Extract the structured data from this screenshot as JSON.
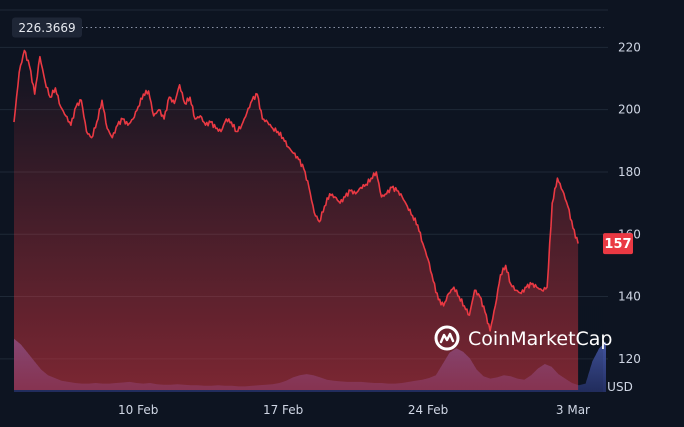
{
  "chart_data": {
    "type": "area",
    "y_unit": "USD",
    "ylim": [
      110,
      232
    ],
    "y_ticks": [
      120,
      140,
      160,
      180,
      200,
      220
    ],
    "x_ticks": [
      {
        "date": "2025-02-10",
        "label": "10 Feb"
      },
      {
        "date": "2025-02-17",
        "label": "17 Feb"
      },
      {
        "date": "2025-02-24",
        "label": "24 Feb"
      },
      {
        "date": "2025-03-03",
        "label": "3 Mar"
      }
    ],
    "x_range": [
      "2025-02-04 00:00",
      "2025-03-04 12:00"
    ],
    "max_line_value": 226.3669,
    "max_label": "226.3669",
    "current_price": 157,
    "current_price_label": "157",
    "grid": true,
    "colors": {
      "line": "#ea3943",
      "area_top": "#ea3943",
      "volume": "#3a4a8c",
      "price_badge": "#ea3943",
      "background": "#0d1421"
    },
    "series": [
      {
        "values": [
          [
            "2025-02-04 00:00",
            196
          ],
          [
            "2025-02-04 06:00",
            212
          ],
          [
            "2025-02-04 12:00",
            219
          ],
          [
            "2025-02-04 18:00",
            214
          ],
          [
            "2025-02-05 00:00",
            205
          ],
          [
            "2025-02-05 06:00",
            217
          ],
          [
            "2025-02-05 12:00",
            209
          ],
          [
            "2025-02-05 18:00",
            204
          ],
          [
            "2025-02-06 00:00",
            207
          ],
          [
            "2025-02-06 06:00",
            201
          ],
          [
            "2025-02-06 12:00",
            198
          ],
          [
            "2025-02-06 18:00",
            195
          ],
          [
            "2025-02-07 00:00",
            201
          ],
          [
            "2025-02-07 06:00",
            203
          ],
          [
            "2025-02-07 12:00",
            193
          ],
          [
            "2025-02-07 18:00",
            191
          ],
          [
            "2025-02-08 00:00",
            196
          ],
          [
            "2025-02-08 06:00",
            203
          ],
          [
            "2025-02-08 12:00",
            194
          ],
          [
            "2025-02-08 18:00",
            191
          ],
          [
            "2025-02-09 00:00",
            195
          ],
          [
            "2025-02-09 06:00",
            197
          ],
          [
            "2025-02-09 12:00",
            195
          ],
          [
            "2025-02-09 18:00",
            197
          ],
          [
            "2025-02-10 00:00",
            201
          ],
          [
            "2025-02-10 06:00",
            205
          ],
          [
            "2025-02-10 12:00",
            206
          ],
          [
            "2025-02-10 18:00",
            198
          ],
          [
            "2025-02-11 00:00",
            200
          ],
          [
            "2025-02-11 06:00",
            197
          ],
          [
            "2025-02-11 12:00",
            204
          ],
          [
            "2025-02-11 18:00",
            202
          ],
          [
            "2025-02-12 00:00",
            208
          ],
          [
            "2025-02-12 06:00",
            202
          ],
          [
            "2025-02-12 12:00",
            204
          ],
          [
            "2025-02-12 18:00",
            197
          ],
          [
            "2025-02-13 00:00",
            198
          ],
          [
            "2025-02-13 06:00",
            195
          ],
          [
            "2025-02-13 12:00",
            196
          ],
          [
            "2025-02-13 18:00",
            194
          ],
          [
            "2025-02-14 00:00",
            193
          ],
          [
            "2025-02-14 06:00",
            197
          ],
          [
            "2025-02-14 12:00",
            196
          ],
          [
            "2025-02-14 18:00",
            193
          ],
          [
            "2025-02-15 00:00",
            195
          ],
          [
            "2025-02-15 06:00",
            199
          ],
          [
            "2025-02-15 12:00",
            203
          ],
          [
            "2025-02-15 18:00",
            205
          ],
          [
            "2025-02-16 00:00",
            197
          ],
          [
            "2025-02-16 06:00",
            196
          ],
          [
            "2025-02-16 12:00",
            194
          ],
          [
            "2025-02-16 18:00",
            193
          ],
          [
            "2025-02-17 00:00",
            191
          ],
          [
            "2025-02-17 06:00",
            188
          ],
          [
            "2025-02-17 12:00",
            186
          ],
          [
            "2025-02-17 18:00",
            184
          ],
          [
            "2025-02-18 00:00",
            181
          ],
          [
            "2025-02-18 06:00",
            175
          ],
          [
            "2025-02-18 12:00",
            167
          ],
          [
            "2025-02-18 18:00",
            164
          ],
          [
            "2025-02-19 00:00",
            169
          ],
          [
            "2025-02-19 06:00",
            173
          ],
          [
            "2025-02-19 12:00",
            172
          ],
          [
            "2025-02-19 18:00",
            170
          ],
          [
            "2025-02-20 00:00",
            172
          ],
          [
            "2025-02-20 06:00",
            174
          ],
          [
            "2025-02-20 12:00",
            173
          ],
          [
            "2025-02-20 18:00",
            175
          ],
          [
            "2025-02-21 00:00",
            176
          ],
          [
            "2025-02-21 06:00",
            178
          ],
          [
            "2025-02-21 12:00",
            180
          ],
          [
            "2025-02-21 18:00",
            172
          ],
          [
            "2025-02-22 00:00",
            173
          ],
          [
            "2025-02-22 06:00",
            175
          ],
          [
            "2025-02-22 12:00",
            174
          ],
          [
            "2025-02-22 18:00",
            172
          ],
          [
            "2025-02-23 00:00",
            169
          ],
          [
            "2025-02-23 06:00",
            166
          ],
          [
            "2025-02-23 12:00",
            163
          ],
          [
            "2025-02-23 18:00",
            157
          ],
          [
            "2025-02-24 00:00",
            152
          ],
          [
            "2025-02-24 06:00",
            145
          ],
          [
            "2025-02-24 12:00",
            139
          ],
          [
            "2025-02-24 18:00",
            137
          ],
          [
            "2025-02-25 00:00",
            141
          ],
          [
            "2025-02-25 06:00",
            143
          ],
          [
            "2025-02-25 12:00",
            140
          ],
          [
            "2025-02-25 18:00",
            137
          ],
          [
            "2025-02-26 00:00",
            134
          ],
          [
            "2025-02-26 06:00",
            142
          ],
          [
            "2025-02-26 12:00",
            140
          ],
          [
            "2025-02-26 18:00",
            135
          ],
          [
            "2025-02-27 00:00",
            129
          ],
          [
            "2025-02-27 06:00",
            137
          ],
          [
            "2025-02-27 12:00",
            147
          ],
          [
            "2025-02-27 18:00",
            150
          ],
          [
            "2025-02-28 00:00",
            144
          ],
          [
            "2025-02-28 06:00",
            142
          ],
          [
            "2025-02-28 12:00",
            141
          ],
          [
            "2025-02-28 18:00",
            143
          ],
          [
            "2025-03-01 00:00",
            144
          ],
          [
            "2025-03-01 06:00",
            143
          ],
          [
            "2025-03-01 12:00",
            142
          ],
          [
            "2025-03-01 18:00",
            143
          ],
          [
            "2025-03-02 00:00",
            170
          ],
          [
            "2025-03-02 06:00",
            178
          ],
          [
            "2025-03-02 12:00",
            174
          ],
          [
            "2025-03-02 18:00",
            169
          ],
          [
            "2025-03-03 00:00",
            162
          ],
          [
            "2025-03-03 06:00",
            157
          ]
        ]
      }
    ],
    "volume_profile": [
      0.95,
      0.85,
      0.7,
      0.55,
      0.4,
      0.3,
      0.25,
      0.2,
      0.18,
      0.16,
      0.15,
      0.15,
      0.16,
      0.15,
      0.15,
      0.16,
      0.17,
      0.18,
      0.16,
      0.15,
      0.16,
      0.14,
      0.13,
      0.13,
      0.14,
      0.13,
      0.12,
      0.12,
      0.11,
      0.11,
      0.12,
      0.11,
      0.11,
      0.1,
      0.1,
      0.11,
      0.12,
      0.13,
      0.14,
      0.16,
      0.2,
      0.26,
      0.3,
      0.32,
      0.3,
      0.26,
      0.22,
      0.2,
      0.19,
      0.18,
      0.18,
      0.18,
      0.17,
      0.16,
      0.16,
      0.15,
      0.15,
      0.16,
      0.18,
      0.2,
      0.22,
      0.25,
      0.3,
      0.5,
      0.7,
      0.78,
      0.72,
      0.6,
      0.4,
      0.28,
      0.24,
      0.26,
      0.3,
      0.28,
      0.24,
      0.22,
      0.3,
      0.42,
      0.5,
      0.45,
      0.32,
      0.24,
      0.16,
      0.12,
      0.15,
      0.55,
      0.78,
      0.9
    ]
  },
  "watermark": {
    "brand": "CoinMarketCap",
    "icon": "coinmarketcap-logo-icon"
  }
}
